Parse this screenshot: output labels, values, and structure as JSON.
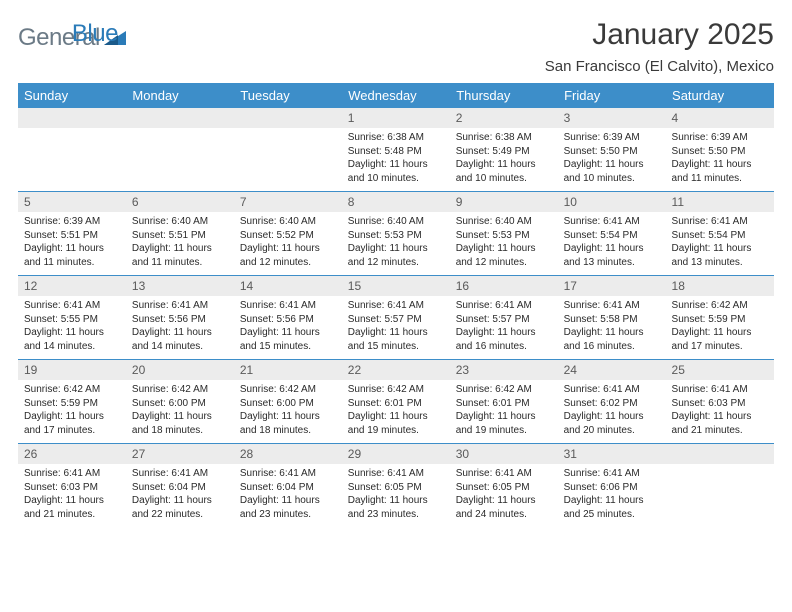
{
  "logo": {
    "text_gray": "General",
    "text_blue": "Blue"
  },
  "title": "January 2025",
  "location": "San Francisco (El Calvito), Mexico",
  "colors": {
    "header_bg": "#3d8ec9",
    "header_text": "#ffffff",
    "daynum_bg": "#ececec",
    "daynum_text": "#5a5a5a",
    "body_text": "#2a2a2a",
    "logo_gray": "#6b7a86",
    "logo_blue": "#2a7bb8",
    "border": "#3d8ec9"
  },
  "weekdays": [
    "Sunday",
    "Monday",
    "Tuesday",
    "Wednesday",
    "Thursday",
    "Friday",
    "Saturday"
  ],
  "weeks": [
    [
      null,
      null,
      null,
      {
        "n": "1",
        "sr": "6:38 AM",
        "ss": "5:48 PM",
        "dl": "11 hours and 10 minutes."
      },
      {
        "n": "2",
        "sr": "6:38 AM",
        "ss": "5:49 PM",
        "dl": "11 hours and 10 minutes."
      },
      {
        "n": "3",
        "sr": "6:39 AM",
        "ss": "5:50 PM",
        "dl": "11 hours and 10 minutes."
      },
      {
        "n": "4",
        "sr": "6:39 AM",
        "ss": "5:50 PM",
        "dl": "11 hours and 11 minutes."
      }
    ],
    [
      {
        "n": "5",
        "sr": "6:39 AM",
        "ss": "5:51 PM",
        "dl": "11 hours and 11 minutes."
      },
      {
        "n": "6",
        "sr": "6:40 AM",
        "ss": "5:51 PM",
        "dl": "11 hours and 11 minutes."
      },
      {
        "n": "7",
        "sr": "6:40 AM",
        "ss": "5:52 PM",
        "dl": "11 hours and 12 minutes."
      },
      {
        "n": "8",
        "sr": "6:40 AM",
        "ss": "5:53 PM",
        "dl": "11 hours and 12 minutes."
      },
      {
        "n": "9",
        "sr": "6:40 AM",
        "ss": "5:53 PM",
        "dl": "11 hours and 12 minutes."
      },
      {
        "n": "10",
        "sr": "6:41 AM",
        "ss": "5:54 PM",
        "dl": "11 hours and 13 minutes."
      },
      {
        "n": "11",
        "sr": "6:41 AM",
        "ss": "5:54 PM",
        "dl": "11 hours and 13 minutes."
      }
    ],
    [
      {
        "n": "12",
        "sr": "6:41 AM",
        "ss": "5:55 PM",
        "dl": "11 hours and 14 minutes."
      },
      {
        "n": "13",
        "sr": "6:41 AM",
        "ss": "5:56 PM",
        "dl": "11 hours and 14 minutes."
      },
      {
        "n": "14",
        "sr": "6:41 AM",
        "ss": "5:56 PM",
        "dl": "11 hours and 15 minutes."
      },
      {
        "n": "15",
        "sr": "6:41 AM",
        "ss": "5:57 PM",
        "dl": "11 hours and 15 minutes."
      },
      {
        "n": "16",
        "sr": "6:41 AM",
        "ss": "5:57 PM",
        "dl": "11 hours and 16 minutes."
      },
      {
        "n": "17",
        "sr": "6:41 AM",
        "ss": "5:58 PM",
        "dl": "11 hours and 16 minutes."
      },
      {
        "n": "18",
        "sr": "6:42 AM",
        "ss": "5:59 PM",
        "dl": "11 hours and 17 minutes."
      }
    ],
    [
      {
        "n": "19",
        "sr": "6:42 AM",
        "ss": "5:59 PM",
        "dl": "11 hours and 17 minutes."
      },
      {
        "n": "20",
        "sr": "6:42 AM",
        "ss": "6:00 PM",
        "dl": "11 hours and 18 minutes."
      },
      {
        "n": "21",
        "sr": "6:42 AM",
        "ss": "6:00 PM",
        "dl": "11 hours and 18 minutes."
      },
      {
        "n": "22",
        "sr": "6:42 AM",
        "ss": "6:01 PM",
        "dl": "11 hours and 19 minutes."
      },
      {
        "n": "23",
        "sr": "6:42 AM",
        "ss": "6:01 PM",
        "dl": "11 hours and 19 minutes."
      },
      {
        "n": "24",
        "sr": "6:41 AM",
        "ss": "6:02 PM",
        "dl": "11 hours and 20 minutes."
      },
      {
        "n": "25",
        "sr": "6:41 AM",
        "ss": "6:03 PM",
        "dl": "11 hours and 21 minutes."
      }
    ],
    [
      {
        "n": "26",
        "sr": "6:41 AM",
        "ss": "6:03 PM",
        "dl": "11 hours and 21 minutes."
      },
      {
        "n": "27",
        "sr": "6:41 AM",
        "ss": "6:04 PM",
        "dl": "11 hours and 22 minutes."
      },
      {
        "n": "28",
        "sr": "6:41 AM",
        "ss": "6:04 PM",
        "dl": "11 hours and 23 minutes."
      },
      {
        "n": "29",
        "sr": "6:41 AM",
        "ss": "6:05 PM",
        "dl": "11 hours and 23 minutes."
      },
      {
        "n": "30",
        "sr": "6:41 AM",
        "ss": "6:05 PM",
        "dl": "11 hours and 24 minutes."
      },
      {
        "n": "31",
        "sr": "6:41 AM",
        "ss": "6:06 PM",
        "dl": "11 hours and 25 minutes."
      },
      null
    ]
  ],
  "labels": {
    "sunrise": "Sunrise:",
    "sunset": "Sunset:",
    "daylight": "Daylight:"
  }
}
